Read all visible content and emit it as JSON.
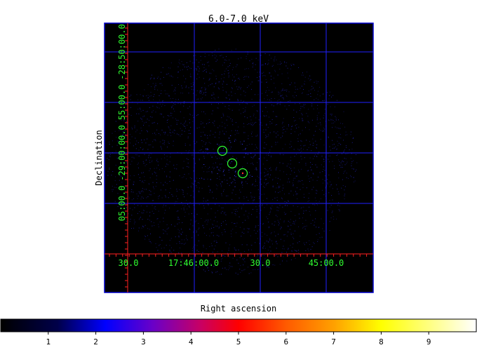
{
  "figure": {
    "title": "6.0-7.0 keV",
    "xlabel": "Right ascension",
    "ylabel": "Declination"
  },
  "ra_ticks": [
    "30.0",
    "17:46:00.0",
    "30.0",
    "45:00.0"
  ],
  "dec_ticks": [
    "05:00.0",
    "-29:00:00.0",
    "55:00.0",
    "-28:50:00.0"
  ],
  "colorbar": {
    "ticks": [
      "1",
      "2",
      "3",
      "4",
      "5",
      "6",
      "7",
      "8",
      "9"
    ],
    "range": [
      0,
      10
    ]
  },
  "colors": {
    "grid": "#2020ff",
    "axis": "#ff2020",
    "tick_label": "#30ff30",
    "region": "#30ff30",
    "frame": "#0000cc"
  },
  "regions": [
    {
      "name": "source-1",
      "shape": "circle"
    },
    {
      "name": "source-2",
      "shape": "circle"
    },
    {
      "name": "source-3",
      "shape": "circle"
    }
  ]
}
